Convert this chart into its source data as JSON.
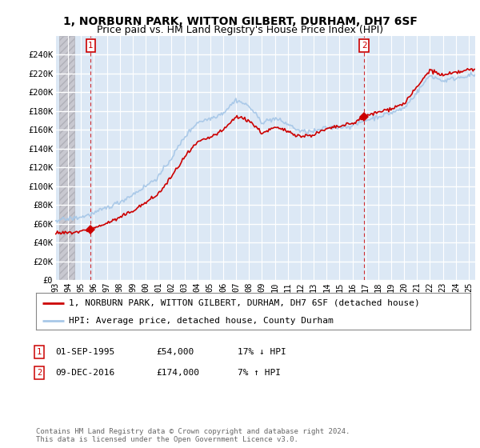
{
  "title": "1, NORBURN PARK, WITTON GILBERT, DURHAM, DH7 6SF",
  "subtitle": "Price paid vs. HM Land Registry's House Price Index (HPI)",
  "ylim": [
    0,
    260000
  ],
  "yticks": [
    0,
    20000,
    40000,
    60000,
    80000,
    100000,
    120000,
    140000,
    160000,
    180000,
    200000,
    220000,
    240000
  ],
  "ytick_labels": [
    "£0",
    "£20K",
    "£40K",
    "£60K",
    "£80K",
    "£100K",
    "£120K",
    "£140K",
    "£160K",
    "£180K",
    "£200K",
    "£220K",
    "£240K"
  ],
  "xlim_start": 1993.3,
  "xlim_end": 2025.5,
  "xticks": [
    1993,
    1994,
    1995,
    1996,
    1997,
    1998,
    1999,
    2000,
    2001,
    2002,
    2003,
    2004,
    2005,
    2006,
    2007,
    2008,
    2009,
    2010,
    2011,
    2012,
    2013,
    2014,
    2015,
    2016,
    2017,
    2018,
    2019,
    2020,
    2021,
    2022,
    2023,
    2024,
    2025
  ],
  "hpi_color": "#a8c8e8",
  "price_color": "#cc0000",
  "marker_color": "#cc0000",
  "bg_color": "#ffffff",
  "plot_bg_color": "#dce8f5",
  "grid_color": "#ffffff",
  "hatch_area_color": "#c8c8c8",
  "sale1_year": 1995.75,
  "sale1_price": 54000,
  "sale1_label": "1",
  "sale2_year": 2016.92,
  "sale2_price": 174000,
  "sale2_label": "2",
  "legend_line1": "1, NORBURN PARK, WITTON GILBERT, DURHAM, DH7 6SF (detached house)",
  "legend_line2": "HPI: Average price, detached house, County Durham",
  "table_row1": [
    "1",
    "01-SEP-1995",
    "£54,000",
    "17% ↓ HPI"
  ],
  "table_row2": [
    "2",
    "09-DEC-2016",
    "£174,000",
    "7% ↑ HPI"
  ],
  "footer": "Contains HM Land Registry data © Crown copyright and database right 2024.\nThis data is licensed under the Open Government Licence v3.0.",
  "title_fontsize": 10,
  "subtitle_fontsize": 9,
  "axis_fontsize": 7.5,
  "legend_fontsize": 8,
  "table_fontsize": 8,
  "footer_fontsize": 6.5
}
